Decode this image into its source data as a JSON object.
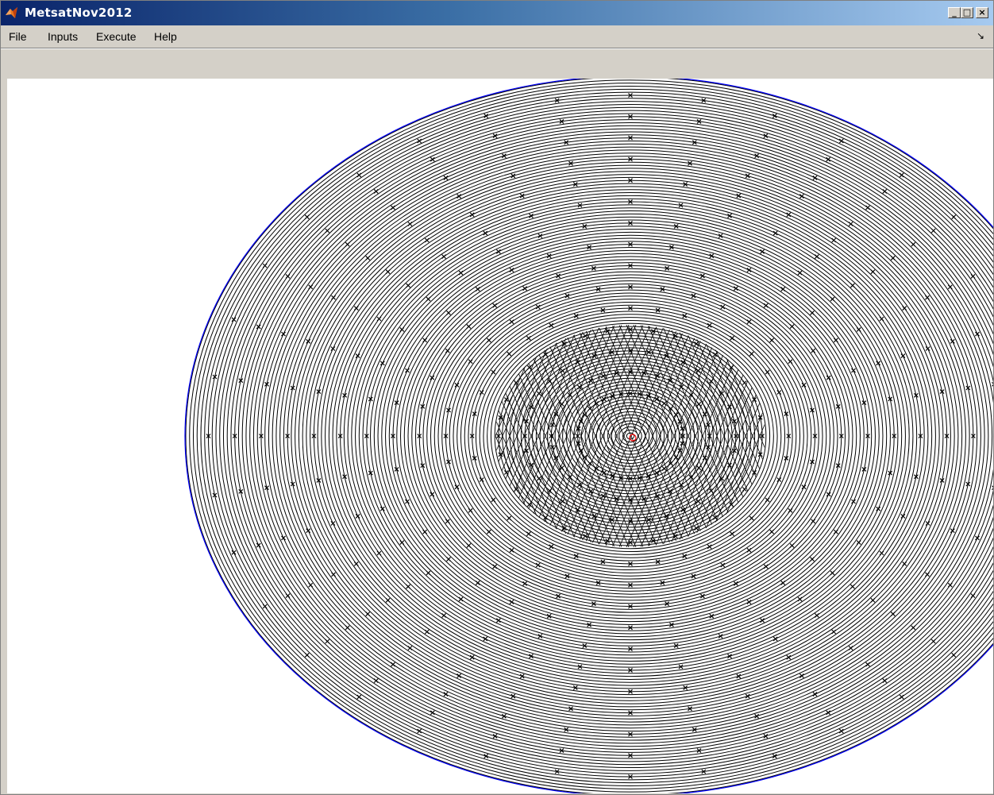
{
  "window": {
    "title": "MetsatNov2012",
    "controls": {
      "minimize": "_",
      "maximize": "□",
      "close": "×"
    }
  },
  "icons": {
    "app": "matlab-logo-icon",
    "minimize": "minimize-icon",
    "maximize": "maximize-icon",
    "close": "close-icon",
    "dock": "dock-arrow-icon"
  },
  "menu": {
    "items": [
      "File",
      "Inputs",
      "Execute",
      "Help"
    ],
    "dock_glyph": "↘"
  },
  "figure": {
    "background": "#ffffff",
    "ring_color": "#000000",
    "boundary_color": "#0000ff",
    "center_marker_color": "#ff0000"
  }
}
